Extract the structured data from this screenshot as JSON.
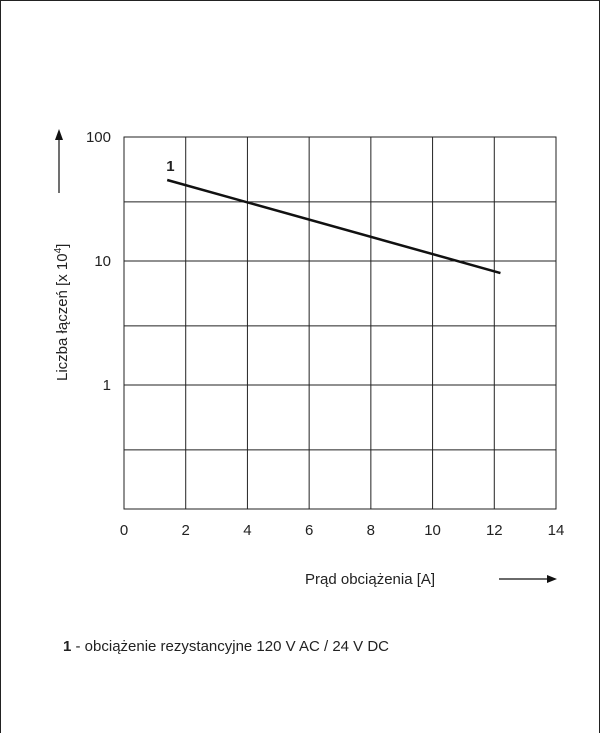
{
  "chart_data": {
    "type": "line",
    "xlabel": "Prąd obciążenia [A]",
    "ylabel_main": "Liczba łączeń [x 10",
    "ylabel_sup": "4",
    "ylabel_end": "]",
    "xlim": [
      0,
      14
    ],
    "ylim": [
      0.1,
      100
    ],
    "yscale": "log",
    "x_ticks": [
      0,
      2,
      4,
      6,
      8,
      10,
      12,
      14
    ],
    "x_tick_labels": [
      "0",
      "2",
      "4",
      "6",
      "8",
      "10",
      "12",
      "14"
    ],
    "y_tick_values": [
      1,
      10,
      100
    ],
    "y_tick_labels": [
      "1",
      "10",
      "100"
    ],
    "y_grid_values": [
      0.1,
      0.3,
      1,
      3,
      10,
      30,
      100
    ],
    "grid": true,
    "series": [
      {
        "name": "1",
        "x": [
          1.4,
          12.2
        ],
        "y": [
          45,
          8
        ]
      }
    ],
    "series_label_text": "1"
  },
  "footnote": {
    "number": "1",
    "text": " - obciążenie rezystancyjne 120 V AC / 24 V DC"
  }
}
